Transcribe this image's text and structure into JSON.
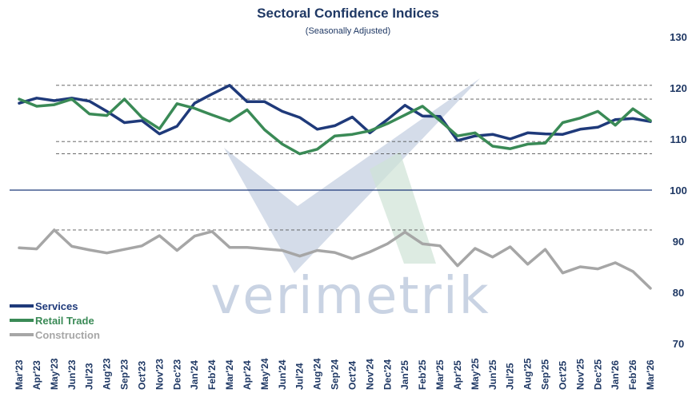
{
  "watermark": {
    "text": "verimetrik"
  },
  "chart_data": {
    "type": "line",
    "title": "Sectoral Confidence Indices",
    "subtitle": "(Seasonally Adjusted)",
    "ylim": [
      70,
      130
    ],
    "yticks": [
      70,
      80,
      90,
      100,
      110,
      120,
      130
    ],
    "reference_line": 100,
    "reference_levels": [
      120.5,
      117.8,
      109.5,
      107.1,
      92.2
    ],
    "grid": false,
    "legend_position": "bottom-left",
    "categories": [
      "Mar'23",
      "Apr'23",
      "May'23",
      "Jun'23",
      "Jul'23",
      "Aug'23",
      "Sep'23",
      "Oct'23",
      "Nov'23",
      "Dec'23",
      "Jan'24",
      "Feb'24",
      "Mar'24",
      "Apr'24",
      "May'24",
      "Jun'24",
      "Jul'24",
      "Aug'24",
      "Sep'24",
      "Oct'24",
      "Nov'24",
      "Dec'24",
      "Jan'25",
      "Feb'25",
      "Mar'25",
      "Apr'25",
      "May'25",
      "Jun'25",
      "Jul'25",
      "Aug'25",
      "Sep'25",
      "Oct'25",
      "Nov'25",
      "Dec'25",
      "Jan'26",
      "Feb'26",
      "Mar'26"
    ],
    "series": [
      {
        "name": "Services",
        "color": "#1f3a7a",
        "values": [
          117.0,
          118.0,
          117.5,
          118.0,
          117.4,
          115.4,
          113.2,
          113.6,
          111.0,
          112.5,
          117.0,
          118.8,
          120.5,
          117.3,
          117.3,
          115.4,
          114.2,
          111.9,
          112.6,
          114.3,
          111.2,
          113.8,
          116.6,
          114.5,
          114.4,
          109.7,
          110.6,
          110.9,
          110.0,
          111.2,
          111.0,
          110.9,
          111.9,
          112.3,
          113.8,
          114.0,
          113.4
        ]
      },
      {
        "name": "Retail Trade",
        "color": "#3a8a56",
        "values": [
          117.8,
          116.4,
          116.7,
          117.8,
          114.9,
          114.6,
          117.8,
          114.2,
          112.0,
          116.9,
          116.0,
          114.7,
          113.5,
          115.7,
          111.8,
          109.0,
          107.1,
          108.0,
          110.6,
          110.9,
          111.6,
          113.0,
          114.7,
          116.4,
          113.6,
          110.6,
          111.2,
          108.6,
          108.1,
          109.0,
          109.2,
          113.2,
          114.1,
          115.4,
          112.7,
          115.9,
          113.6
        ]
      },
      {
        "name": "Construction",
        "color": "#a6a6a6",
        "values": [
          88.7,
          88.5,
          92.2,
          89.0,
          88.3,
          87.7,
          88.4,
          89.1,
          91.1,
          88.2,
          91.0,
          91.9,
          88.8,
          88.8,
          88.5,
          88.2,
          87.1,
          88.2,
          87.8,
          86.6,
          87.9,
          89.5,
          91.8,
          89.5,
          89.1,
          85.2,
          88.6,
          86.9,
          88.9,
          85.5,
          88.4,
          83.8,
          85.0,
          84.6,
          85.8,
          84.1,
          80.8
        ]
      }
    ]
  }
}
